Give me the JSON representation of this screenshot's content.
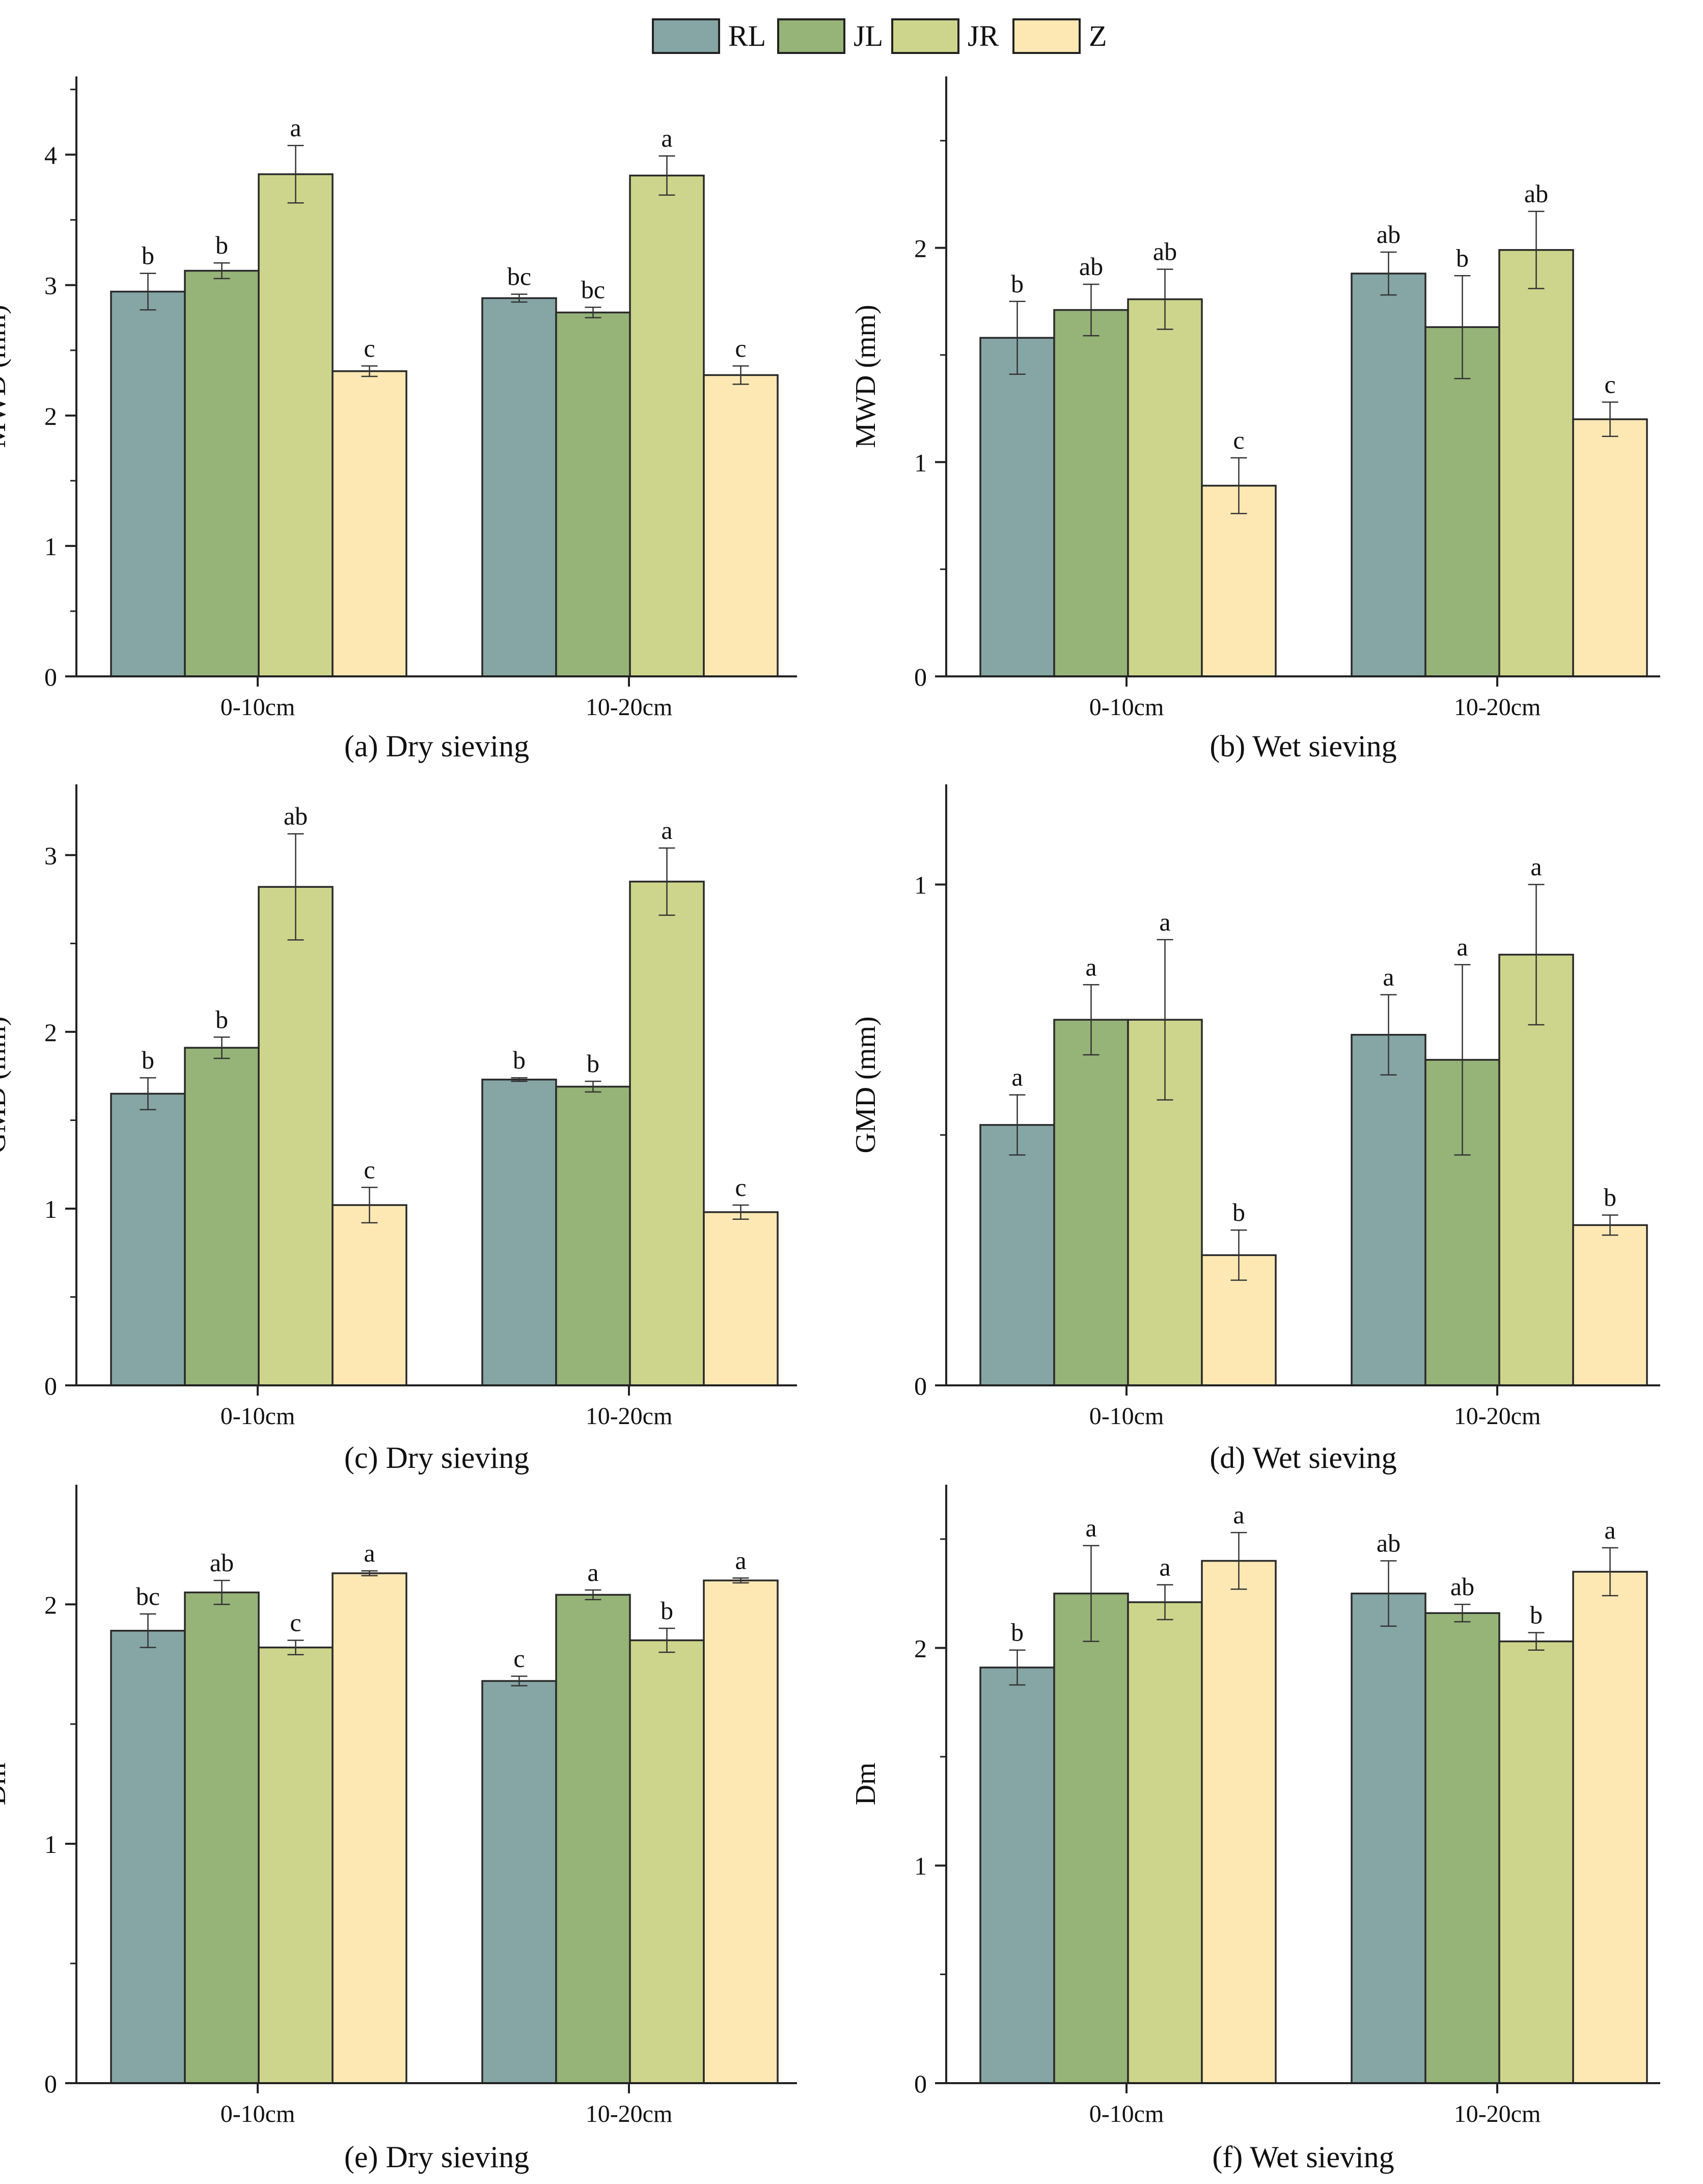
{
  "legend": [
    {
      "name": "RL",
      "color": "#86a5a5"
    },
    {
      "name": "JL",
      "color": "#96b378"
    },
    {
      "name": "JR",
      "color": "#cdd58c"
    },
    {
      "name": "Z",
      "color": "#fde8b4"
    }
  ],
  "chart_data": [
    {
      "type": "bar",
      "caption": "(a) Dry sieving",
      "ylabel": "MWD (mm)",
      "ylim": [
        0,
        4.6
      ],
      "yticks": [
        0,
        1,
        2,
        3,
        4
      ],
      "categories": [
        "0-10cm",
        "10-20cm"
      ],
      "series": [
        {
          "name": "RL",
          "values": [
            2.95,
            2.9
          ],
          "errors": [
            0.14,
            0.03
          ],
          "letters": [
            "b",
            "bc"
          ]
        },
        {
          "name": "JL",
          "values": [
            3.11,
            2.79
          ],
          "errors": [
            0.06,
            0.04
          ],
          "letters": [
            "b",
            "bc"
          ]
        },
        {
          "name": "JR",
          "values": [
            3.85,
            3.84
          ],
          "errors": [
            0.22,
            0.15
          ],
          "letters": [
            "a",
            "a"
          ]
        },
        {
          "name": "Z",
          "values": [
            2.34,
            2.31
          ],
          "errors": [
            0.04,
            0.07
          ],
          "letters": [
            "c",
            "c"
          ]
        }
      ]
    },
    {
      "type": "bar",
      "caption": "(b) Wet sieving",
      "ylabel": "MWD (mm)",
      "ylim": [
        0,
        2.8
      ],
      "yticks": [
        0,
        1,
        2
      ],
      "categories": [
        "0-10cm",
        "10-20cm"
      ],
      "series": [
        {
          "name": "RL",
          "values": [
            1.58,
            1.88
          ],
          "errors": [
            0.17,
            0.1
          ],
          "letters": [
            "b",
            "ab"
          ]
        },
        {
          "name": "JL",
          "values": [
            1.71,
            1.63
          ],
          "errors": [
            0.12,
            0.24
          ],
          "letters": [
            "ab",
            "b"
          ]
        },
        {
          "name": "JR",
          "values": [
            1.76,
            1.99
          ],
          "errors": [
            0.14,
            0.18
          ],
          "letters": [
            "ab",
            "ab"
          ]
        },
        {
          "name": "Z",
          "values": [
            0.89,
            1.2
          ],
          "errors": [
            0.13,
            0.08
          ],
          "letters": [
            "c",
            "c"
          ]
        }
      ]
    },
    {
      "type": "bar",
      "caption": "(c) Dry sieving",
      "ylabel": "GMD (mm)",
      "ylim": [
        0,
        3.4
      ],
      "yticks": [
        0,
        1,
        2,
        3
      ],
      "categories": [
        "0-10cm",
        "10-20cm"
      ],
      "series": [
        {
          "name": "RL",
          "values": [
            1.65,
            1.73
          ],
          "errors": [
            0.09,
            0.01
          ],
          "letters": [
            "b",
            "b"
          ]
        },
        {
          "name": "JL",
          "values": [
            1.91,
            1.69
          ],
          "errors": [
            0.06,
            0.03
          ],
          "letters": [
            "b",
            "b"
          ]
        },
        {
          "name": "JR",
          "values": [
            2.82,
            2.85
          ],
          "errors": [
            0.3,
            0.19
          ],
          "letters": [
            "ab",
            "a"
          ]
        },
        {
          "name": "Z",
          "values": [
            1.02,
            0.98
          ],
          "errors": [
            0.1,
            0.04
          ],
          "letters": [
            "c",
            "c"
          ]
        }
      ]
    },
    {
      "type": "bar",
      "caption": "(d) Wet sieving",
      "ylabel": "GMD (mm)",
      "ylim": [
        0,
        1.2
      ],
      "yticks": [
        0,
        1
      ],
      "categories": [
        "0-10cm",
        "10-20cm"
      ],
      "series": [
        {
          "name": "RL",
          "values": [
            0.52,
            0.7
          ],
          "errors": [
            0.06,
            0.08
          ],
          "letters": [
            "a",
            "a"
          ]
        },
        {
          "name": "JL",
          "values": [
            0.73,
            0.65
          ],
          "errors": [
            0.07,
            0.19
          ],
          "letters": [
            "a",
            "a"
          ]
        },
        {
          "name": "JR",
          "values": [
            0.73,
            0.86
          ],
          "errors": [
            0.16,
            0.14
          ],
          "letters": [
            "a",
            "a"
          ]
        },
        {
          "name": "Z",
          "values": [
            0.26,
            0.32
          ],
          "errors": [
            0.05,
            0.02
          ],
          "letters": [
            "b",
            "b"
          ]
        }
      ]
    },
    {
      "type": "bar",
      "caption": "(e) Dry sieving",
      "ylabel": "Dm",
      "ylim": [
        0,
        2.5
      ],
      "yticks": [
        0,
        1,
        2
      ],
      "categories": [
        "0-10cm",
        "10-20cm"
      ],
      "series": [
        {
          "name": "RL",
          "values": [
            1.89,
            1.68
          ],
          "errors": [
            0.07,
            0.02
          ],
          "letters": [
            "bc",
            "c"
          ]
        },
        {
          "name": "JL",
          "values": [
            2.05,
            2.04
          ],
          "errors": [
            0.05,
            0.02
          ],
          "letters": [
            "ab",
            "a"
          ]
        },
        {
          "name": "JR",
          "values": [
            1.82,
            1.85
          ],
          "errors": [
            0.03,
            0.05
          ],
          "letters": [
            "c",
            "b"
          ]
        },
        {
          "name": "Z",
          "values": [
            2.13,
            2.1
          ],
          "errors": [
            0.01,
            0.01
          ],
          "letters": [
            "a",
            "a"
          ]
        }
      ]
    },
    {
      "type": "bar",
      "caption": "(f) Wet sieving",
      "ylabel": "Dm",
      "ylim": [
        0,
        2.75
      ],
      "yticks": [
        0,
        1,
        2
      ],
      "categories": [
        "0-10cm",
        "10-20cm"
      ],
      "series": [
        {
          "name": "RL",
          "values": [
            1.91,
            2.25
          ],
          "errors": [
            0.08,
            0.15
          ],
          "letters": [
            "b",
            "ab"
          ]
        },
        {
          "name": "JL",
          "values": [
            2.25,
            2.16
          ],
          "errors": [
            0.22,
            0.04
          ],
          "letters": [
            "a",
            "ab"
          ]
        },
        {
          "name": "JR",
          "values": [
            2.21,
            2.03
          ],
          "errors": [
            0.08,
            0.04
          ],
          "letters": [
            "a",
            "b"
          ]
        },
        {
          "name": "Z",
          "values": [
            2.4,
            2.35
          ],
          "errors": [
            0.13,
            0.11
          ],
          "letters": [
            "a",
            "a"
          ]
        }
      ]
    }
  ]
}
